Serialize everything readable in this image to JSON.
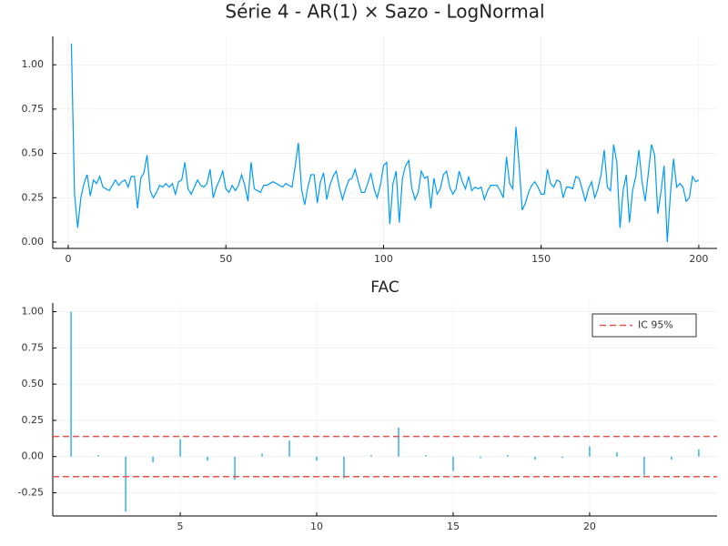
{
  "chart_data": [
    {
      "type": "line",
      "title": "Série 4 - AR(1) × Sazo - LogNormal",
      "grid": true,
      "xlim": [
        -4.9,
        205.8
      ],
      "ylim": [
        -0.036,
        1.16
      ],
      "xticks": [
        0,
        50,
        100,
        150,
        200
      ],
      "yticks": [
        {
          "value": 0,
          "label": "0.00"
        },
        {
          "value": 0.25,
          "label": "0.25"
        },
        {
          "value": 0.5,
          "label": "0.50"
        },
        {
          "value": 0.75,
          "label": "0.75"
        },
        {
          "value": 1,
          "label": "1.00"
        }
      ],
      "x": [
        1,
        2,
        3,
        4,
        5,
        6,
        7,
        8,
        9,
        10,
        11,
        12,
        13,
        14,
        15,
        16,
        17,
        18,
        19,
        20,
        21,
        22,
        23,
        24,
        25,
        26,
        27,
        28,
        29,
        30,
        31,
        32,
        33,
        34,
        35,
        36,
        37,
        38,
        39,
        40,
        41,
        42,
        43,
        44,
        45,
        46,
        47,
        48,
        49,
        50,
        51,
        52,
        53,
        54,
        55,
        56,
        57,
        58,
        59,
        60,
        61,
        62,
        63,
        64,
        65,
        66,
        67,
        68,
        69,
        70,
        71,
        72,
        73,
        74,
        75,
        76,
        77,
        78,
        79,
        80,
        81,
        82,
        83,
        84,
        85,
        86,
        87,
        88,
        89,
        90,
        91,
        92,
        93,
        94,
        95,
        96,
        97,
        98,
        99,
        100,
        101,
        102,
        103,
        104,
        105,
        106,
        107,
        108,
        109,
        110,
        111,
        112,
        113,
        114,
        115,
        116,
        117,
        118,
        119,
        120,
        121,
        122,
        123,
        124,
        125,
        126,
        127,
        128,
        129,
        130,
        131,
        132,
        133,
        134,
        135,
        136,
        137,
        138,
        139,
        140,
        141,
        142,
        143,
        144,
        145,
        146,
        147,
        148,
        149,
        150,
        151,
        152,
        153,
        154,
        155,
        156,
        157,
        158,
        159,
        160,
        161,
        162,
        163,
        164,
        165,
        166,
        167,
        168,
        169,
        170,
        171,
        172,
        173,
        174,
        175,
        176,
        177,
        178,
        179,
        180,
        181,
        182,
        183,
        184,
        185,
        186,
        187,
        188,
        189,
        190,
        191,
        192,
        193,
        194,
        195,
        196,
        197,
        198,
        199,
        200
      ],
      "series": [
        {
          "color": "#009af9",
          "values": [
            1.12,
            0.27,
            0.08,
            0.25,
            0.33,
            0.38,
            0.26,
            0.35,
            0.33,
            0.37,
            0.31,
            0.3,
            0.29,
            0.32,
            0.35,
            0.32,
            0.34,
            0.35,
            0.31,
            0.37,
            0.37,
            0.19,
            0.36,
            0.39,
            0.49,
            0.29,
            0.25,
            0.28,
            0.32,
            0.31,
            0.33,
            0.31,
            0.33,
            0.27,
            0.34,
            0.35,
            0.45,
            0.3,
            0.27,
            0.31,
            0.35,
            0.32,
            0.31,
            0.33,
            0.41,
            0.25,
            0.31,
            0.35,
            0.4,
            0.3,
            0.28,
            0.32,
            0.29,
            0.32,
            0.38,
            0.32,
            0.23,
            0.45,
            0.3,
            0.29,
            0.28,
            0.32,
            0.32,
            0.33,
            0.34,
            0.33,
            0.32,
            0.31,
            0.33,
            0.32,
            0.31,
            0.43,
            0.56,
            0.3,
            0.21,
            0.31,
            0.38,
            0.38,
            0.22,
            0.34,
            0.39,
            0.24,
            0.32,
            0.37,
            0.4,
            0.31,
            0.24,
            0.3,
            0.35,
            0.36,
            0.41,
            0.34,
            0.28,
            0.28,
            0.33,
            0.39,
            0.3,
            0.25,
            0.32,
            0.43,
            0.45,
            0.1,
            0.33,
            0.4,
            0.11,
            0.36,
            0.43,
            0.46,
            0.3,
            0.24,
            0.28,
            0.4,
            0.36,
            0.37,
            0.19,
            0.36,
            0.27,
            0.3,
            0.38,
            0.4,
            0.31,
            0.27,
            0.3,
            0.4,
            0.34,
            0.3,
            0.37,
            0.29,
            0.31,
            0.3,
            0.31,
            0.24,
            0.29,
            0.32,
            0.32,
            0.32,
            0.29,
            0.25,
            0.48,
            0.33,
            0.3,
            0.65,
            0.44,
            0.18,
            0.22,
            0.28,
            0.32,
            0.34,
            0.31,
            0.27,
            0.27,
            0.41,
            0.33,
            0.31,
            0.35,
            0.34,
            0.25,
            0.31,
            0.31,
            0.3,
            0.37,
            0.36,
            0.3,
            0.23,
            0.3,
            0.34,
            0.25,
            0.3,
            0.38,
            0.52,
            0.31,
            0.29,
            0.55,
            0.45,
            0.08,
            0.29,
            0.38,
            0.11,
            0.29,
            0.37,
            0.52,
            0.34,
            0.23,
            0.39,
            0.55,
            0.49,
            0.16,
            0.28,
            0.43,
            0.0,
            0.27,
            0.47,
            0.31,
            0.33,
            0.31,
            0.23,
            0.25,
            0.37,
            0.34,
            0.35
          ]
        }
      ]
    },
    {
      "type": "stem",
      "title": "FAC",
      "grid": true,
      "legend": "top-right",
      "xlim": [
        0.33,
        24.67
      ],
      "ylim": [
        -0.41,
        1.06
      ],
      "xticks": [
        5,
        10,
        15,
        20
      ],
      "yticks": [
        {
          "value": -0.25,
          "label": "-0.25"
        },
        {
          "value": 0,
          "label": "0.00"
        },
        {
          "value": 0.25,
          "label": "0.25"
        },
        {
          "value": 0.5,
          "label": "0.50"
        },
        {
          "value": 0.75,
          "label": "0.75"
        },
        {
          "value": 1,
          "label": "1.00"
        }
      ],
      "x": [
        1,
        2,
        3,
        4,
        5,
        6,
        7,
        8,
        9,
        10,
        11,
        12,
        13,
        14,
        15,
        16,
        17,
        18,
        19,
        20,
        21,
        22,
        23,
        24
      ],
      "series": [
        {
          "color": "#009af9",
          "values": [
            1.0,
            0.01,
            -0.38,
            -0.04,
            0.12,
            -0.03,
            -0.16,
            0.02,
            0.11,
            -0.03,
            -0.15,
            0.01,
            0.2,
            0.01,
            -0.1,
            -0.01,
            0.01,
            -0.02,
            -0.01,
            0.07,
            0.03,
            -0.13,
            -0.02,
            0.05
          ]
        }
      ],
      "reference_lines": {
        "name": "IC 95%",
        "color": "#e8524a",
        "values": [
          0.1386,
          -0.1386
        ]
      }
    }
  ]
}
